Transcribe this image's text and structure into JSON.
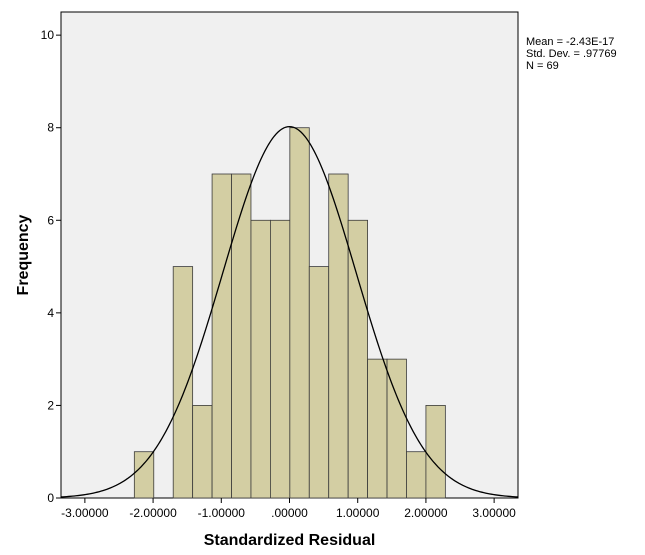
{
  "chart_data": {
    "type": "bar",
    "subtype": "histogram",
    "xlabel": "Standardized Residual",
    "ylabel": "Frequency",
    "xlim": [
      -3.35,
      3.35
    ],
    "ylim": [
      0,
      10.5
    ],
    "x_ticks": [
      -3,
      -2,
      -1,
      0,
      1,
      2,
      3
    ],
    "x_tick_labels": [
      "-3.00000",
      "-2.00000",
      "-1.00000",
      ".00000",
      "1.00000",
      "2.00000",
      "3.00000"
    ],
    "y_ticks": [
      0,
      2,
      4,
      6,
      8,
      10
    ],
    "y_tick_labels": [
      "0",
      "2",
      "4",
      "6",
      "8",
      "10"
    ],
    "bins": [
      {
        "x0": -2.275,
        "x1": -1.99,
        "count": 1
      },
      {
        "x0": -1.705,
        "x1": -1.42,
        "count": 5
      },
      {
        "x0": -1.42,
        "x1": -1.135,
        "count": 2
      },
      {
        "x0": -1.135,
        "x1": -0.85,
        "count": 7
      },
      {
        "x0": -0.85,
        "x1": -0.565,
        "count": 7
      },
      {
        "x0": -0.565,
        "x1": -0.28,
        "count": 6
      },
      {
        "x0": -0.28,
        "x1": 0.005,
        "count": 6
      },
      {
        "x0": 0.005,
        "x1": 0.29,
        "count": 8
      },
      {
        "x0": 0.29,
        "x1": 0.575,
        "count": 5
      },
      {
        "x0": 0.575,
        "x1": 0.86,
        "count": 7
      },
      {
        "x0": 0.86,
        "x1": 1.145,
        "count": 6
      },
      {
        "x0": 1.145,
        "x1": 1.43,
        "count": 3
      },
      {
        "x0": 1.43,
        "x1": 1.715,
        "count": 3
      },
      {
        "x0": 1.715,
        "x1": 2.0,
        "count": 1
      },
      {
        "x0": 2.0,
        "x1": 2.285,
        "count": 2
      }
    ],
    "normal_curve": {
      "mean": 0,
      "std_dev": 0.97769,
      "n": 69,
      "bin_width": 0.285
    },
    "stats": [
      "Mean = -2.43E-17",
      "Std. Dev. = .97769",
      "N = 69"
    ],
    "grid": false,
    "colors": {
      "plot_background": "#f0f0f0",
      "bar_fill": "#d3cea3",
      "bar_stroke": "#3a3a3a",
      "curve": "#000000",
      "axis": "#000000"
    }
  }
}
